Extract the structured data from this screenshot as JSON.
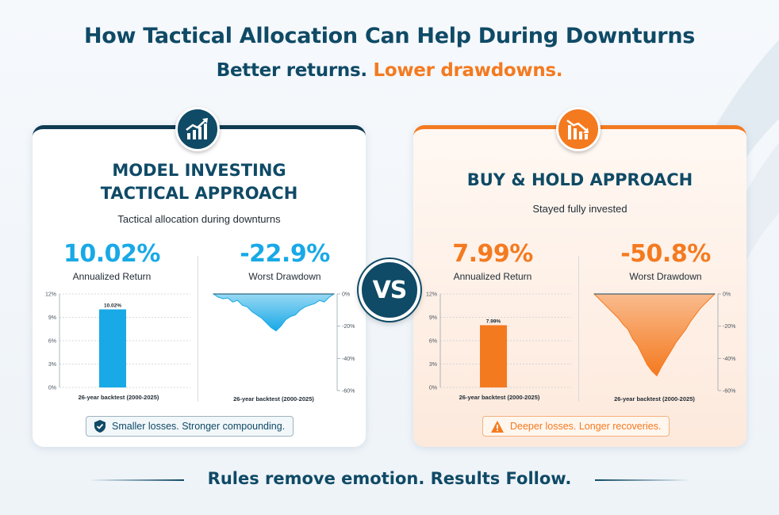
{
  "header": {
    "title": "How Tactical Allocation Can Help During Downturns",
    "subtitle_part1": "Better returns.",
    "subtitle_part2": "Lower drawdowns."
  },
  "vs_label": "VS",
  "colors": {
    "navy": "#0f4a66",
    "blue": "#18a9e6",
    "orange": "#f47a20"
  },
  "left_card": {
    "icon": "growth-chart-icon",
    "title_line1": "MODEL INVESTING",
    "title_line2": "TACTICAL APPROACH",
    "subtitle": "Tactical allocation during downturns",
    "metric1": {
      "value": "10.02%",
      "label": "Annualized Return"
    },
    "metric2": {
      "value": "-22.9%",
      "label": "Worst Drawdown"
    },
    "callout": {
      "icon": "shield-check-icon",
      "text": "Smaller losses. Stronger compounding."
    }
  },
  "right_card": {
    "icon": "declining-chart-icon",
    "title": "BUY & HOLD APPROACH",
    "subtitle": "Stayed fully invested",
    "metric1": {
      "value": "7.99%",
      "label": "Annualized Return"
    },
    "metric2": {
      "value": "-50.8%",
      "label": "Worst Drawdown"
    },
    "callout": {
      "icon": "warning-icon",
      "text": "Deeper losses. Longer recoveries."
    }
  },
  "chart_data": [
    {
      "type": "bar",
      "categories": [
        ""
      ],
      "values": [
        10.02
      ],
      "data_labels": [
        "10.02%"
      ],
      "xlabel": "26-year backtest (2000-2025)",
      "ylim": [
        0,
        12
      ],
      "yticks": [
        "0%",
        "3%",
        "6%",
        "9%",
        "12%"
      ],
      "grid": true,
      "color": "#18a9e6"
    },
    {
      "type": "area",
      "x": [
        0,
        1,
        2,
        3,
        4,
        5,
        6,
        7,
        8,
        9,
        10,
        11,
        12,
        13,
        14,
        15,
        16,
        17,
        18,
        19,
        20,
        21,
        22,
        23,
        24,
        25
      ],
      "values": [
        0,
        -2,
        -3,
        -2.5,
        -5,
        -4,
        -7,
        -8,
        -11,
        -13,
        -15,
        -18,
        -21,
        -22.9,
        -20,
        -16,
        -14,
        -13,
        -10,
        -8,
        -7,
        -6,
        -4,
        -5,
        -2,
        0
      ],
      "xlabel": "26-year backtest (2000-2025)",
      "ylim": [
        -60,
        0
      ],
      "yticks": [
        "0%",
        "-20%",
        "-40%",
        "-60%"
      ],
      "color": "#18a9e6"
    },
    {
      "type": "bar",
      "categories": [
        ""
      ],
      "values": [
        7.99
      ],
      "data_labels": [
        "7.99%"
      ],
      "xlabel": "26-year backtest (2000-2025)",
      "ylim": [
        0,
        12
      ],
      "yticks": [
        "0%",
        "3%",
        "6%",
        "9%",
        "12%"
      ],
      "grid": true,
      "color": "#f47a20"
    },
    {
      "type": "area",
      "x": [
        0,
        1,
        2,
        3,
        4,
        5,
        6,
        7,
        8,
        9,
        10,
        11,
        12,
        13,
        14,
        15,
        16,
        17,
        18,
        19,
        20,
        21,
        22,
        23,
        24,
        25
      ],
      "values": [
        0,
        -3,
        -6,
        -9,
        -12,
        -15,
        -19,
        -22,
        -28,
        -32,
        -38,
        -44,
        -48,
        -50.8,
        -45,
        -40,
        -35,
        -30,
        -26,
        -22,
        -17,
        -13,
        -9,
        -6,
        -3,
        0
      ],
      "xlabel": "26-year backtest (2000-2025)",
      "ylim": [
        -60,
        0
      ],
      "yticks": [
        "0%",
        "-20%",
        "-40%",
        "-60%"
      ],
      "color": "#f47a20"
    }
  ],
  "footer": {
    "text": "Rules remove emotion. Results Follow."
  }
}
